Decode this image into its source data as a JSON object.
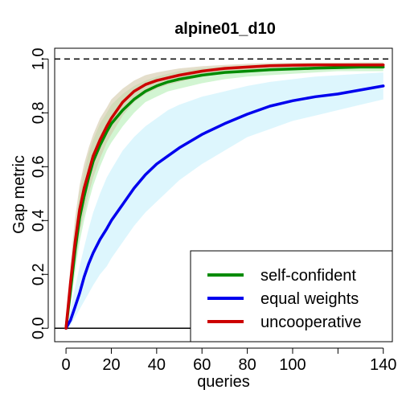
{
  "chart_data": {
    "type": "line",
    "title": "alpine01_d10",
    "xlabel": "queries",
    "ylabel": "Gap metric",
    "xlim": [
      -5,
      144
    ],
    "ylim": [
      -0.05,
      1.04
    ],
    "x_ticks": [
      0,
      20,
      40,
      60,
      80,
      100,
      120,
      140
    ],
    "x_tick_labels": [
      "0",
      "20",
      "40",
      "60",
      "80",
      "100",
      "",
      "140"
    ],
    "y_ticks": [
      0.0,
      0.2,
      0.4,
      0.6,
      0.8,
      1.0
    ],
    "y_tick_labels": [
      "0.0",
      "0.2",
      "0.4",
      "0.6",
      "0.8",
      "1.0"
    ],
    "reference_lines": [
      {
        "y": 1.0,
        "style": "dashed",
        "color": "#000000"
      },
      {
        "y": 0.0,
        "style": "solid",
        "color": "#000000"
      }
    ],
    "legend": {
      "position": "bottom-right"
    },
    "series": [
      {
        "name": "self-confident",
        "color": "#008B00",
        "band_color": "#B4EEB4",
        "x": [
          0,
          2,
          4,
          6,
          8,
          10,
          12,
          15,
          18,
          20,
          25,
          30,
          35,
          40,
          45,
          50,
          60,
          70,
          80,
          90,
          100,
          110,
          120,
          130,
          140
        ],
        "y": [
          0.0,
          0.14,
          0.29,
          0.41,
          0.49,
          0.56,
          0.62,
          0.68,
          0.73,
          0.76,
          0.81,
          0.85,
          0.88,
          0.9,
          0.915,
          0.925,
          0.94,
          0.95,
          0.955,
          0.96,
          0.963,
          0.966,
          0.968,
          0.97,
          0.97
        ],
        "lower": [
          0.0,
          0.09,
          0.21,
          0.32,
          0.4,
          0.47,
          0.53,
          0.6,
          0.66,
          0.69,
          0.75,
          0.8,
          0.84,
          0.86,
          0.88,
          0.89,
          0.91,
          0.925,
          0.935,
          0.94,
          0.945,
          0.95,
          0.955,
          0.955,
          0.955
        ],
        "upper": [
          0.0,
          0.2,
          0.37,
          0.5,
          0.58,
          0.65,
          0.7,
          0.76,
          0.8,
          0.83,
          0.87,
          0.9,
          0.92,
          0.935,
          0.945,
          0.955,
          0.965,
          0.972,
          0.976,
          0.978,
          0.98,
          0.982,
          0.983,
          0.984,
          0.985
        ]
      },
      {
        "name": "equal weights",
        "color": "#0000EE",
        "band_color": "#C6F0FB",
        "x": [
          0,
          2,
          4,
          6,
          8,
          10,
          12,
          15,
          18,
          20,
          25,
          30,
          35,
          40,
          45,
          50,
          60,
          70,
          80,
          90,
          100,
          110,
          120,
          130,
          140
        ],
        "y": [
          0.0,
          0.03,
          0.08,
          0.13,
          0.19,
          0.24,
          0.28,
          0.33,
          0.37,
          0.4,
          0.46,
          0.52,
          0.57,
          0.61,
          0.64,
          0.67,
          0.72,
          0.76,
          0.795,
          0.825,
          0.845,
          0.86,
          0.87,
          0.885,
          0.9
        ],
        "lower": [
          0.0,
          0.01,
          0.04,
          0.07,
          0.1,
          0.13,
          0.16,
          0.2,
          0.23,
          0.26,
          0.32,
          0.38,
          0.43,
          0.47,
          0.51,
          0.55,
          0.61,
          0.66,
          0.71,
          0.74,
          0.77,
          0.79,
          0.81,
          0.83,
          0.85
        ],
        "upper": [
          0.0,
          0.07,
          0.15,
          0.23,
          0.3,
          0.37,
          0.43,
          0.5,
          0.56,
          0.59,
          0.66,
          0.71,
          0.75,
          0.78,
          0.81,
          0.83,
          0.86,
          0.88,
          0.9,
          0.915,
          0.925,
          0.935,
          0.94,
          0.945,
          0.95
        ]
      },
      {
        "name": "uncooperative",
        "color": "#CD0000",
        "band_color": "#D2C8A8",
        "x": [
          0,
          2,
          4,
          6,
          8,
          10,
          12,
          15,
          18,
          20,
          25,
          30,
          35,
          40,
          45,
          50,
          60,
          70,
          80,
          90,
          100,
          110,
          120,
          130,
          140
        ],
        "y": [
          0.0,
          0.17,
          0.32,
          0.44,
          0.52,
          0.58,
          0.64,
          0.7,
          0.75,
          0.78,
          0.84,
          0.88,
          0.905,
          0.92,
          0.93,
          0.94,
          0.955,
          0.965,
          0.97,
          0.975,
          0.977,
          0.978,
          0.978,
          0.978,
          0.978
        ],
        "lower": [
          0.0,
          0.11,
          0.24,
          0.35,
          0.43,
          0.5,
          0.56,
          0.63,
          0.69,
          0.72,
          0.79,
          0.84,
          0.87,
          0.89,
          0.905,
          0.915,
          0.935,
          0.947,
          0.955,
          0.96,
          0.963,
          0.965,
          0.965,
          0.966,
          0.966
        ],
        "upper": [
          0.0,
          0.24,
          0.41,
          0.53,
          0.61,
          0.67,
          0.72,
          0.78,
          0.82,
          0.85,
          0.89,
          0.92,
          0.94,
          0.95,
          0.958,
          0.965,
          0.973,
          0.978,
          0.982,
          0.985,
          0.986,
          0.987,
          0.987,
          0.988,
          0.988
        ]
      }
    ]
  }
}
